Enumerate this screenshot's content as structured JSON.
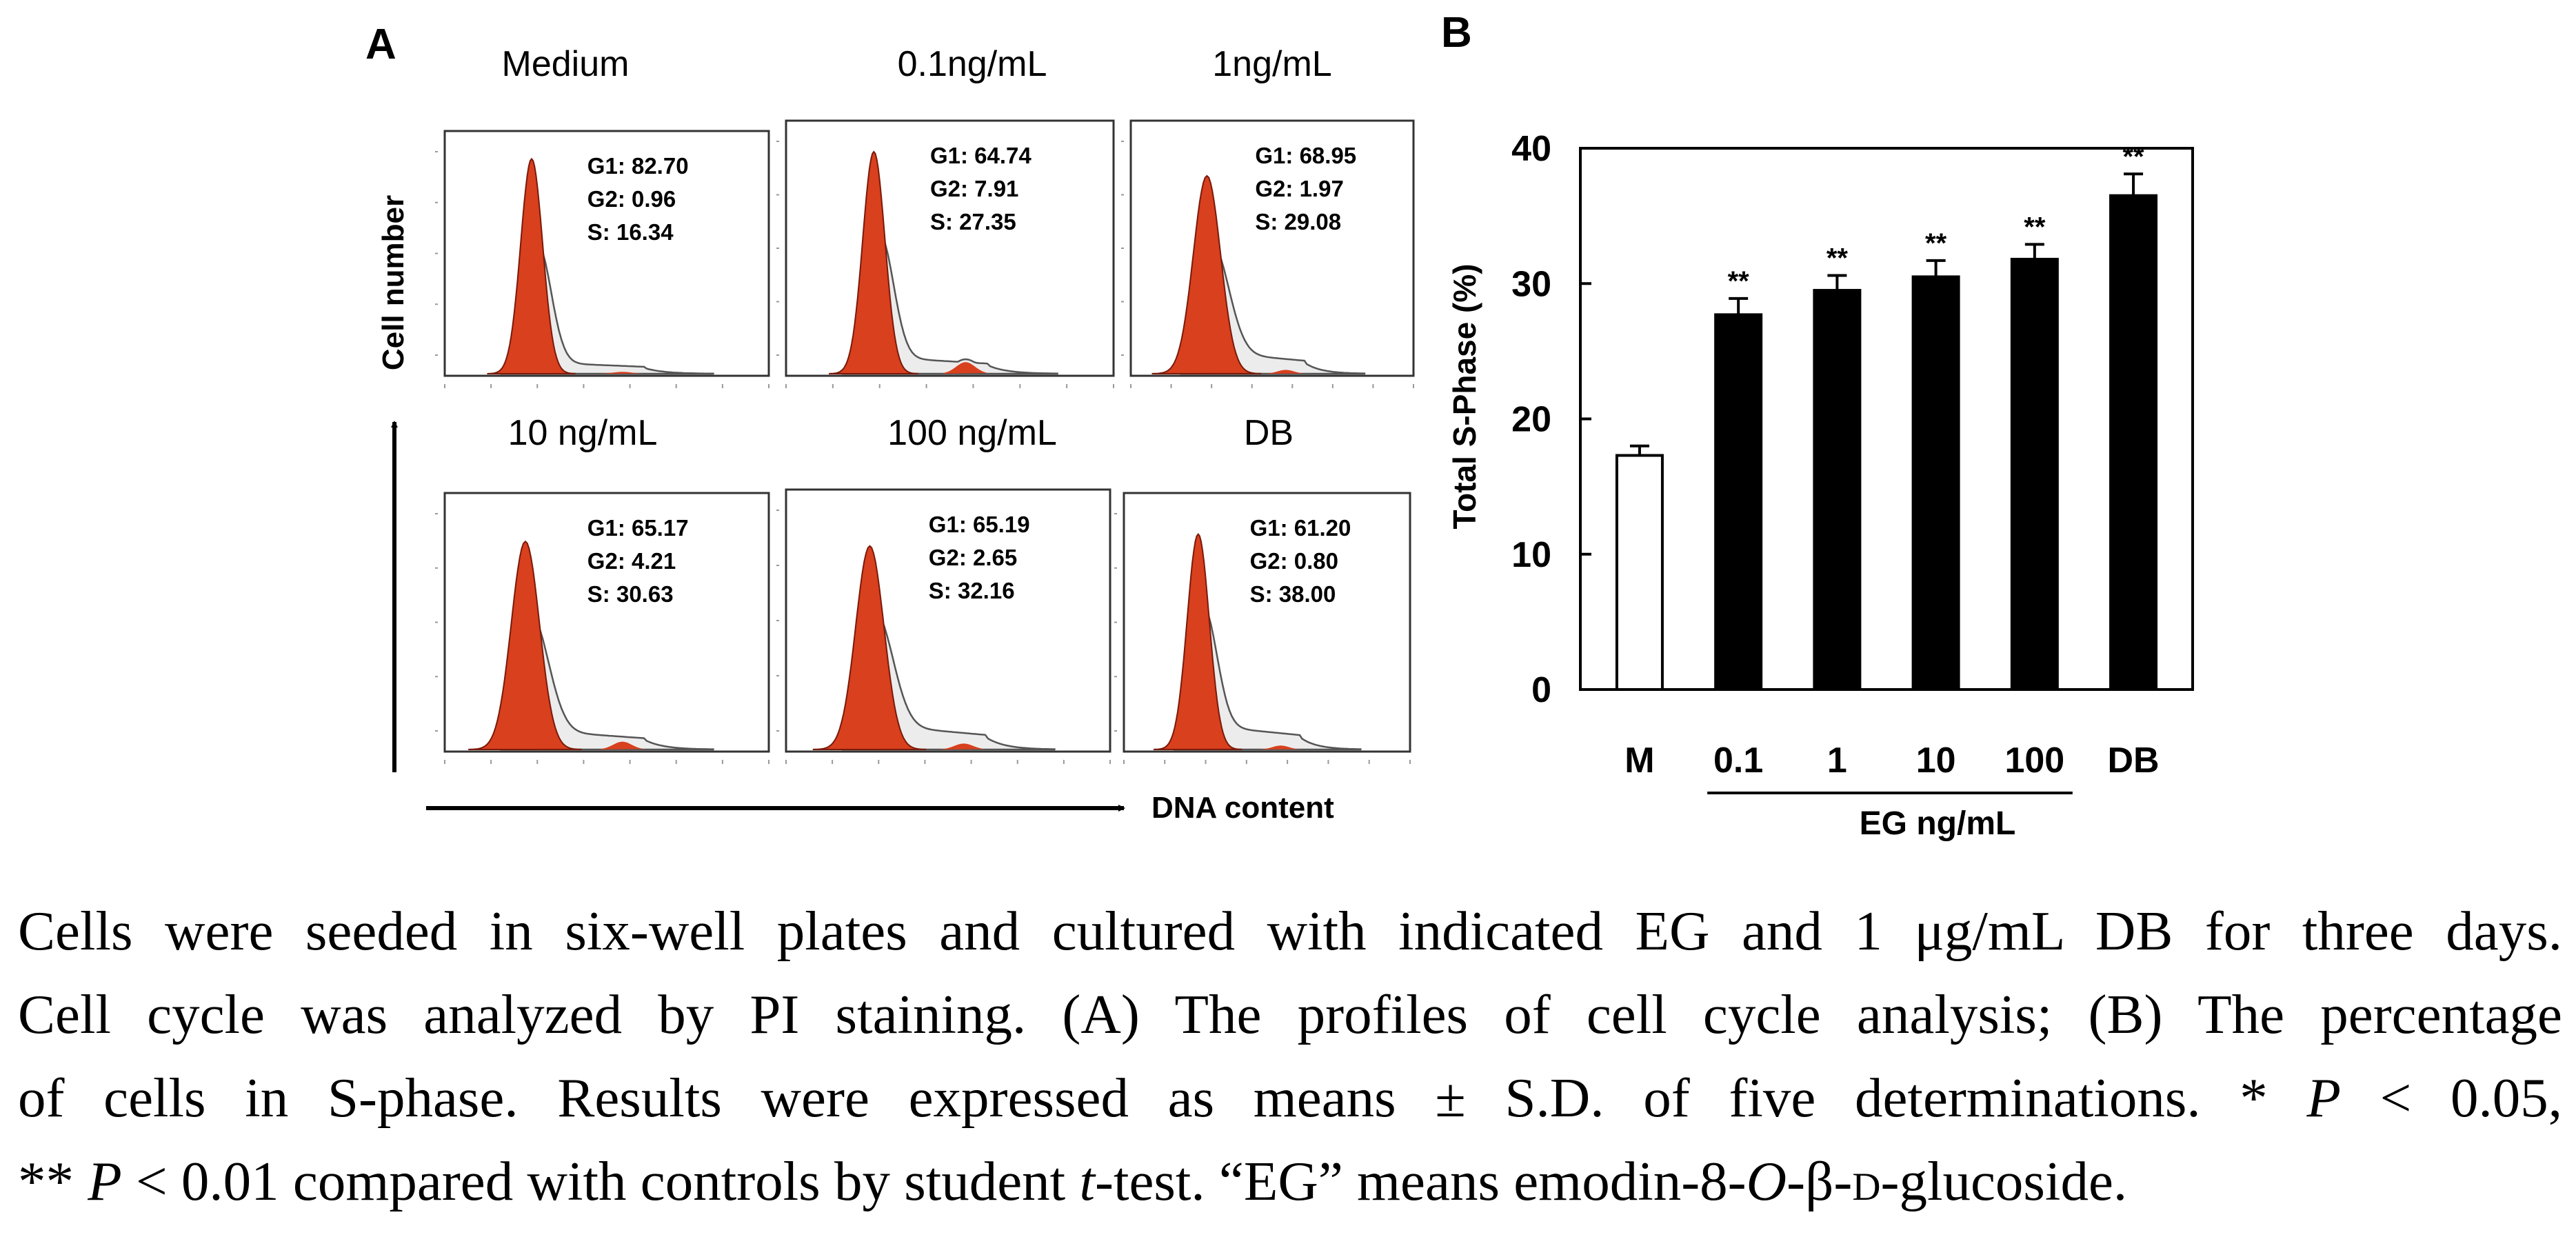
{
  "panel_a": {
    "letter": "A",
    "y_axis_label": "Cell number",
    "x_axis_label": "DNA content",
    "histograms": [
      {
        "title": "Medium",
        "g1": "G1: 82.70",
        "g2": "G2: 0.96",
        "s": "S:  16.34"
      },
      {
        "title": "0.1ng/mL",
        "g1": "G1: 64.74",
        "g2": "G2: 7.91",
        "s": "S:  27.35"
      },
      {
        "title": "1ng/mL",
        "g1": "G1: 68.95",
        "g2": "G2: 1.97",
        "s": "S:  29.08"
      },
      {
        "title": "10 ng/mL",
        "g1": "G1: 65.17",
        "g2": "G2: 4.21",
        "s": "S:  30.63"
      },
      {
        "title": "100 ng/mL",
        "g1": "G1: 65.19",
        "g2": "G2: 2.65",
        "s": "S:  32.16"
      },
      {
        "title": "DB",
        "g1": "G1: 61.20",
        "g2": "G2: 0.80",
        "s": "S:  38.00"
      }
    ]
  },
  "panel_b": {
    "letter": "B"
  },
  "chart_data": {
    "type": "bar",
    "categories": [
      "M",
      "0.1",
      "1",
      "10",
      "100",
      "DB"
    ],
    "values": [
      17.3,
      27.7,
      29.5,
      30.5,
      31.8,
      36.5
    ],
    "errors": [
      0.7,
      1.2,
      1.1,
      1.2,
      1.1,
      1.6
    ],
    "significance": [
      "",
      "**",
      "**",
      "**",
      "**",
      "**"
    ],
    "bar_colors": [
      "#ffffff",
      "#000000",
      "#000000",
      "#000000",
      "#000000",
      "#000000"
    ],
    "ylabel": "Total S-Phase (%)",
    "xlabel": "EG ng/mL",
    "ylim": [
      0,
      40
    ],
    "yticks": [
      0,
      10,
      20,
      30,
      40
    ],
    "grid": false
  },
  "caption": {
    "line1": "Cells were seeded in six-well plates and cultured with indicated EG and 1 μg/mL DB for three days.",
    "line2": "Cell cycle was analyzed by PI staining. (A) The profiles of cell cycle analysis; (B) The percentage",
    "line3": "of cells in S-phase. Results were expressed as means ± S.D. of five determinations. * P < 0.05,",
    "line4": "** P < 0.01 compared with controls by student t-test. “EG” means emodin-8-O-β-D-glucoside."
  },
  "colors": {
    "g1_fill": "#d8401e",
    "s_fill": "#ececec",
    "outline": "#555555",
    "bar": "#000000"
  }
}
